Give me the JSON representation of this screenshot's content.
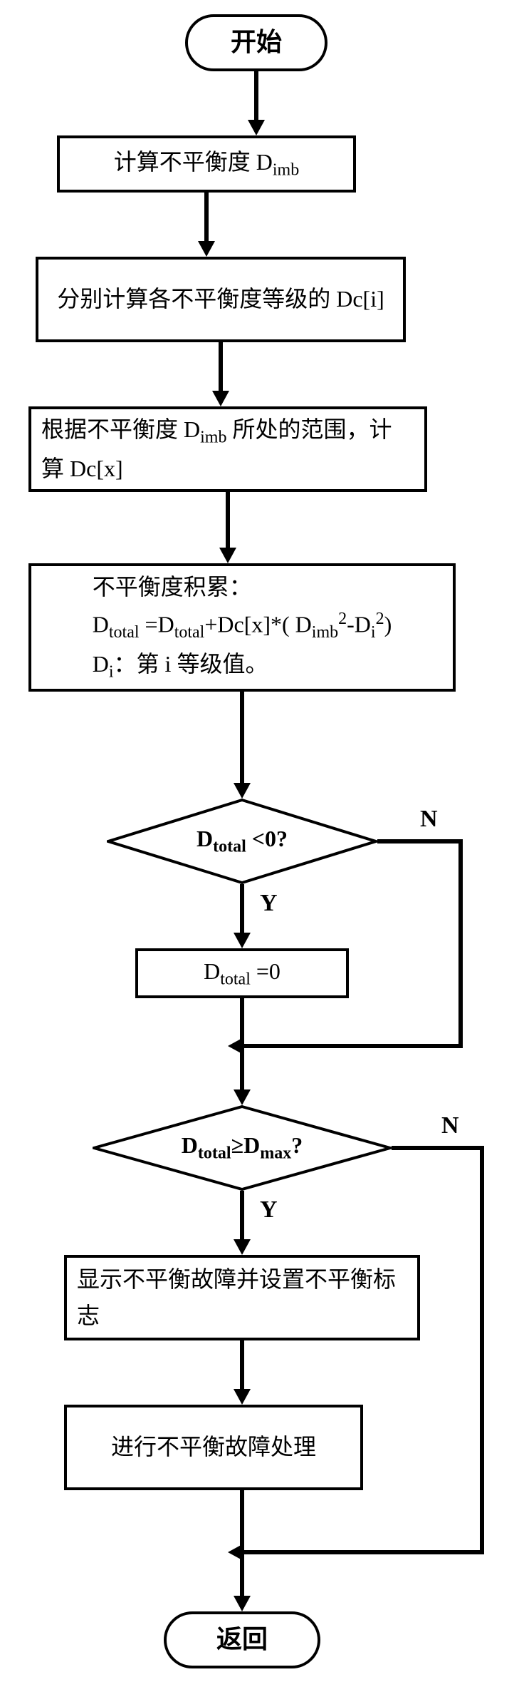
{
  "flowchart": {
    "type": "flowchart",
    "background_color": "#ffffff",
    "stroke_color": "#000000",
    "stroke_width": 4,
    "font_family": "SimSun",
    "nodes": {
      "start": {
        "text": "开始",
        "fontsize": 36
      },
      "p1": {
        "text": "计算不平衡度 D<sub>imb</sub>",
        "fontsize": 32
      },
      "p2": {
        "text": "分别计算各不平衡度等级的 Dc[i]",
        "fontsize": 32
      },
      "p3": {
        "text": "根据不平衡度 D<sub>imb</sub> 所处的范围，计算 Dc[x]",
        "fontsize": 32
      },
      "p4": {
        "text": "不平衡度积累：<br>D<sub>total</sub> =D<sub>total</sub>+Dc[x]*( D<sub>imb</sub><sup>2</sup>-D<sub>i</sub><sup>2</sup>)<br>D<sub>i</sub>：第 i 等级值。",
        "fontsize": 32
      },
      "d1": {
        "text": "D<sub>total</sub> &lt;0?",
        "fontsize": 32
      },
      "p5": {
        "text": "D<sub>total</sub> =0",
        "fontsize": 32
      },
      "d2": {
        "text": "D<sub>total</sub>≥D<sub>max</sub>?",
        "fontsize": 32
      },
      "p6": {
        "text": "显示不平衡故障并设置不平衡标志",
        "fontsize": 32
      },
      "p7": {
        "text": "进行不平衡故障处理",
        "fontsize": 32
      },
      "end": {
        "text": "返回",
        "fontsize": 36
      }
    },
    "labels": {
      "d1_yes": "Y",
      "d1_no": "N",
      "d2_yes": "Y",
      "d2_no": "N"
    },
    "label_fontsize": 34
  }
}
